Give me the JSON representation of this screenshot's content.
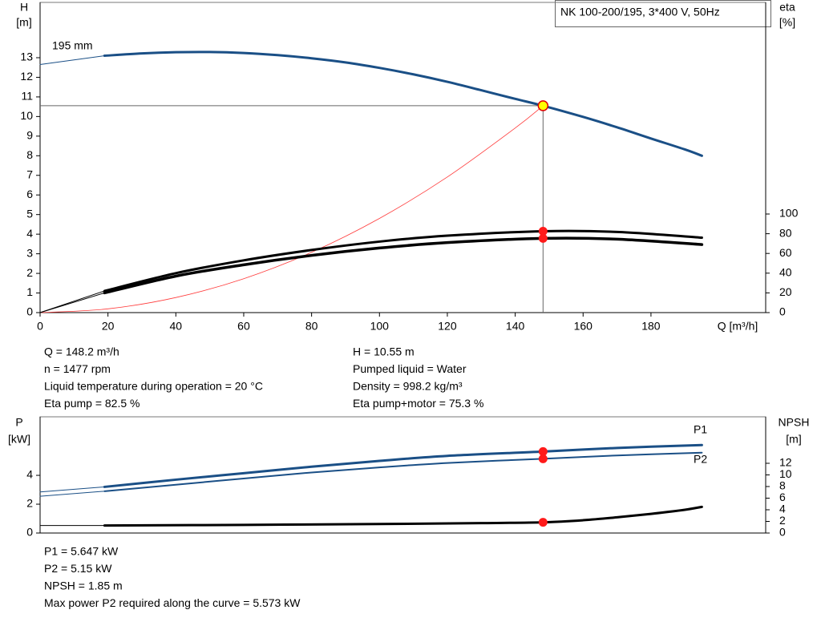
{
  "chart_data": [
    {
      "type": "line",
      "title": "NK 100-200/195, 3*400 V, 50Hz",
      "y_label": "H",
      "y_unit": "[m]",
      "y2_label": "eta",
      "y2_unit": "[%]",
      "x_label": "Q [m³/h]",
      "xlim": [
        0,
        213.8
      ],
      "xticks": [
        0,
        20,
        40,
        60,
        80,
        100,
        120,
        140,
        160,
        180
      ],
      "ylim": [
        0,
        15.82
      ],
      "yticks": [
        0,
        1,
        2,
        3,
        4,
        5,
        6,
        7,
        8,
        9,
        10,
        11,
        12,
        13
      ],
      "y2lim": [
        0,
        314.6
      ],
      "y2ticks": [
        0,
        20,
        40,
        60,
        80,
        100
      ],
      "series": [
        {
          "name": "195 mm",
          "color": "#1a4f86",
          "width": 3,
          "x": [
            19,
            30,
            40,
            50,
            60,
            70,
            80,
            90,
            100,
            110,
            120,
            130,
            140,
            148.2,
            160,
            170,
            180,
            190,
            195
          ],
          "values": [
            13.1,
            13.22,
            13.28,
            13.29,
            13.24,
            13.13,
            12.97,
            12.76,
            12.48,
            12.15,
            11.77,
            11.34,
            10.9,
            10.55,
            9.98,
            9.45,
            8.88,
            8.32,
            8.0
          ]
        },
        {
          "color": "#1a4f86",
          "width": 1,
          "x": [
            0,
            19
          ],
          "values": [
            12.65,
            13.1
          ]
        },
        {
          "color": "#ff3b3b",
          "width": 0.8,
          "x": [
            0,
            20,
            40,
            60,
            80,
            100,
            120,
            140,
            148.2
          ],
          "values": [
            0,
            0.192,
            0.769,
            1.729,
            3.074,
            4.803,
            6.917,
            9.415,
            10.55
          ]
        },
        {
          "color": "#000000",
          "width": 3,
          "axis": "y2",
          "x": [
            19,
            40,
            60,
            80,
            100,
            120,
            148.2,
            170,
            195
          ],
          "values": [
            22,
            40,
            53,
            63.5,
            72,
            78,
            82.5,
            81.8,
            76
          ]
        },
        {
          "color": "#000000",
          "width": 1,
          "axis": "y2",
          "x": [
            0,
            19
          ],
          "values": [
            0,
            22
          ]
        },
        {
          "color": "#000000",
          "width": 3.5,
          "axis": "y2",
          "x": [
            19,
            40,
            60,
            80,
            100,
            120,
            148.2,
            170,
            195
          ],
          "values": [
            20,
            37,
            48.5,
            58,
            65.5,
            71,
            75.3,
            74.5,
            69
          ]
        },
        {
          "color": "#000000",
          "width": 1,
          "axis": "y2",
          "x": [
            0,
            19
          ],
          "values": [
            0,
            20
          ]
        }
      ],
      "points": [
        {
          "x": 148.2,
          "value": 10.55,
          "color": "#ffff00",
          "stroke": "#e00000",
          "crosshair": true
        },
        {
          "x": 148.2,
          "value": 82.5,
          "axis": "y2",
          "color": "#ff1a1a"
        },
        {
          "x": 148.2,
          "value": 75.3,
          "axis": "y2",
          "color": "#ff1a1a"
        }
      ],
      "info_left": [
        "Q = 148.2 m³/h",
        "n = 1477 rpm",
        "Liquid temperature during operation = 20 °C",
        "Eta pump = 82.5 %"
      ],
      "info_right": [
        "H = 10.55 m",
        "Pumped liquid = Water",
        "Density = 998.2 kg/m³",
        "Eta pump+motor = 75.3 %"
      ]
    },
    {
      "type": "line",
      "y_label": "P",
      "y_unit": "[kW]",
      "y2_label": "NPSH",
      "y2_unit": "[m]",
      "xlim": [
        0,
        213.8
      ],
      "ylim": [
        0,
        8.06
      ],
      "yticks": [
        0,
        2,
        4
      ],
      "y2lim": [
        0,
        20
      ],
      "y2ticks": [
        0,
        2,
        4,
        6,
        8,
        10,
        12
      ],
      "series": [
        {
          "name": "P1",
          "color": "#1a4f86",
          "width": 3,
          "x": [
            19,
            40,
            60,
            80,
            100,
            120,
            148.2,
            170,
            195
          ],
          "values": [
            3.2,
            3.7,
            4.15,
            4.6,
            5.0,
            5.35,
            5.647,
            5.9,
            6.1
          ]
        },
        {
          "color": "#1a4f86",
          "width": 1,
          "x": [
            0,
            19
          ],
          "values": [
            2.85,
            3.2
          ]
        },
        {
          "name": "P2",
          "color": "#1a4f86",
          "width": 2,
          "x": [
            19,
            40,
            60,
            80,
            100,
            120,
            148.2,
            170,
            195
          ],
          "values": [
            2.9,
            3.35,
            3.78,
            4.2,
            4.55,
            4.86,
            5.15,
            5.38,
            5.573
          ]
        },
        {
          "color": "#1a4f86",
          "width": 1,
          "x": [
            0,
            19
          ],
          "values": [
            2.55,
            2.9
          ]
        },
        {
          "color": "#000000",
          "width": 3,
          "axis": "y2",
          "x": [
            19,
            60,
            100,
            130,
            148.2,
            160,
            170,
            180,
            190,
            195
          ],
          "values": [
            1.3,
            1.4,
            1.55,
            1.7,
            1.85,
            2.2,
            2.7,
            3.3,
            4.0,
            4.5
          ]
        },
        {
          "color": "#000000",
          "width": 1,
          "axis": "y2",
          "x": [
            0,
            19
          ],
          "values": [
            1.3,
            1.3
          ]
        }
      ],
      "points": [
        {
          "x": 148.2,
          "value": 5.647,
          "color": "#ff1a1a"
        },
        {
          "x": 148.2,
          "value": 5.15,
          "color": "#ff1a1a"
        },
        {
          "x": 148.2,
          "value": 1.85,
          "axis": "y2",
          "color": "#ff1a1a"
        }
      ],
      "info": [
        "P1 = 5.647 kW",
        "P2 = 5.15 kW",
        "NPSH = 1.85 m",
        "Max power P2 required along the curve = 5.573 kW"
      ]
    }
  ]
}
